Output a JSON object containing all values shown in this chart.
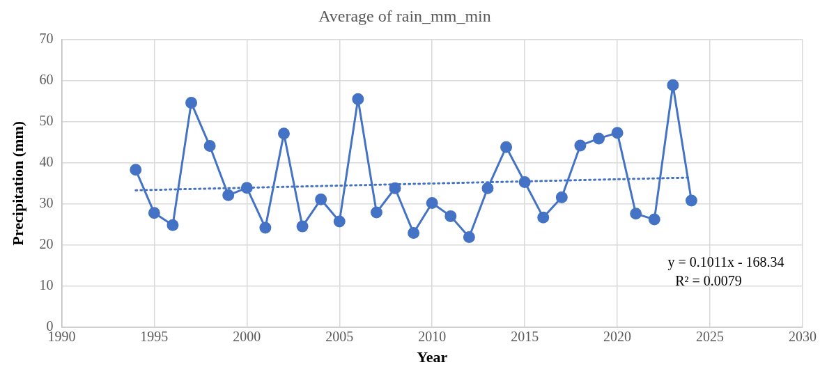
{
  "chart_data": {
    "type": "line",
    "title": "Average of rain_mm_min",
    "xlabel": "Year",
    "ylabel": "Precipitation (mm)",
    "x": [
      1994,
      1995,
      1996,
      1997,
      1998,
      1999,
      2000,
      2001,
      2002,
      2003,
      2004,
      2005,
      2006,
      2007,
      2008,
      2009,
      2010,
      2011,
      2012,
      2013,
      2014,
      2015,
      2016,
      2017,
      2018,
      2019,
      2020,
      2021,
      2022,
      2023,
      2024
    ],
    "series": [
      {
        "color": "#4472c4",
        "values": [
          38.3,
          27.8,
          24.8,
          54.6,
          44.1,
          32.1,
          33.9,
          24.2,
          47.1,
          24.5,
          31.1,
          25.7,
          55.5,
          27.9,
          33.8,
          22.9,
          30.2,
          27.0,
          21.9,
          33.8,
          43.8,
          35.3,
          26.7,
          31.6,
          44.2,
          45.9,
          47.3,
          27.6,
          26.2,
          58.9,
          30.8
        ]
      },
      {
        "type": "line",
        "color": "#4472c4",
        "x": [
          1994,
          2024
        ],
        "values": [
          33.3,
          36.4
        ],
        "line_style": "dotted",
        "marker": "none"
      }
    ],
    "xlim": [
      1990,
      2030
    ],
    "xticks": [
      1990,
      1995,
      2000,
      2005,
      2010,
      2015,
      2020,
      2025,
      2030
    ],
    "ylim": [
      0,
      70
    ],
    "yticks": [
      0,
      10,
      20,
      30,
      40,
      50,
      60,
      70
    ],
    "annotations": [
      "y = 0.1011x - 168.34",
      "R² = 0.0079"
    ],
    "grid": true,
    "legend": false,
    "marker": "circle",
    "line_style": "solid"
  }
}
